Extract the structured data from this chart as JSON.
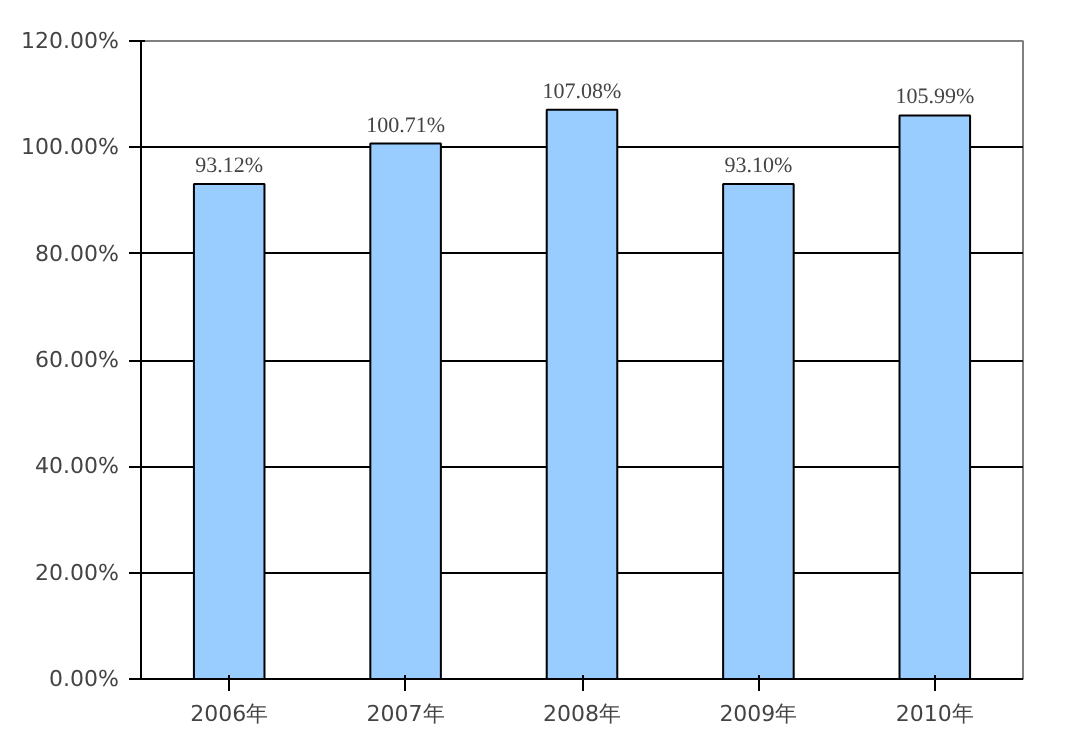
{
  "chart_data": {
    "type": "bar",
    "categories": [
      "2006年",
      "2007年",
      "2008年",
      "2009年",
      "2010年"
    ],
    "values": [
      93.12,
      100.71,
      107.08,
      93.1,
      105.99
    ],
    "value_labels": [
      "93.12%",
      "100.71%",
      "107.08%",
      "93.10%",
      "105.99%"
    ],
    "color": "#99ccff",
    "ylim": [
      0,
      120
    ],
    "yticks": [
      {
        "value": 0,
        "label": "0.00%"
      },
      {
        "value": 20,
        "label": "20.00%"
      },
      {
        "value": 40,
        "label": "40.00%"
      },
      {
        "value": 60,
        "label": "60.00%"
      },
      {
        "value": 80,
        "label": "80.00%"
      },
      {
        "value": 100,
        "label": "100.00%"
      },
      {
        "value": 120,
        "label": "120.00%"
      }
    ],
    "grid": "y"
  }
}
